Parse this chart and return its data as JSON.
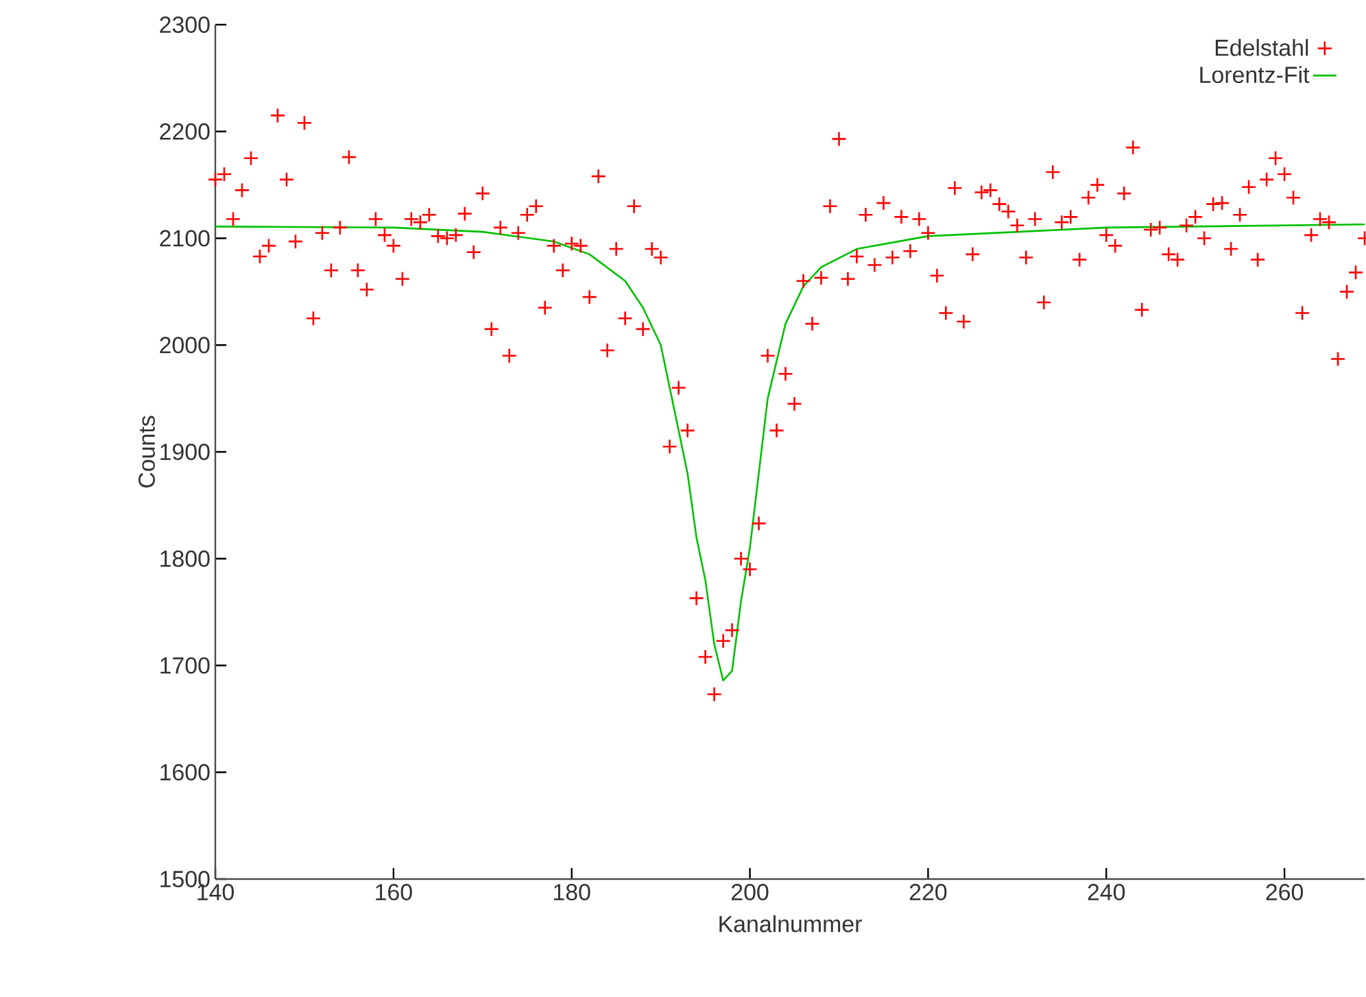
{
  "chart_data": {
    "type": "scatter",
    "xlabel": "Kanalnummer",
    "ylabel": "Counts",
    "xlim": [
      140,
      269
    ],
    "ylim": [
      1500,
      2300
    ],
    "xticks": [
      140,
      160,
      180,
      200,
      220,
      240,
      260
    ],
    "yticks": [
      1500,
      1600,
      1700,
      1800,
      1900,
      2000,
      2100,
      2200,
      2300
    ],
    "legend": "top right",
    "grid": false,
    "series": [
      {
        "name": "Edelstahl",
        "marker": "cross",
        "color": "#ff0000",
        "x": [
          140,
          141,
          142,
          143,
          144,
          145,
          146,
          147,
          148,
          149,
          150,
          151,
          152,
          153,
          154,
          155,
          156,
          157,
          158,
          159,
          160,
          161,
          162,
          163,
          164,
          165,
          166,
          167,
          168,
          169,
          170,
          171,
          172,
          173,
          174,
          175,
          176,
          177,
          178,
          179,
          180,
          181,
          182,
          183,
          184,
          185,
          186,
          187,
          188,
          189,
          190,
          191,
          192,
          193,
          194,
          195,
          196,
          197,
          198,
          199,
          200,
          201,
          202,
          203,
          204,
          205,
          206,
          207,
          208,
          209,
          210,
          211,
          212,
          213,
          214,
          215,
          216,
          217,
          218,
          219,
          220,
          221,
          222,
          223,
          224,
          225,
          226,
          227,
          228,
          229,
          230,
          231,
          232,
          233,
          234,
          235,
          236,
          237,
          238,
          239,
          240,
          241,
          242,
          243,
          244,
          245,
          246,
          247,
          248,
          249,
          250,
          251,
          252,
          253,
          254,
          255,
          256,
          257,
          258,
          259,
          260,
          261,
          262,
          263,
          264,
          265,
          266,
          267,
          268,
          269
        ],
        "values": [
          2155,
          2160,
          2118,
          2145,
          2175,
          2083,
          2093,
          2215,
          2155,
          2097,
          2208,
          2025,
          2105,
          2070,
          2110,
          2176,
          2070,
          2052,
          2118,
          2103,
          2093,
          2062,
          2118,
          2115,
          2122,
          2102,
          2100,
          2103,
          2123,
          2087,
          2142,
          2015,
          2110,
          1990,
          2105,
          2122,
          2130,
          2035,
          2093,
          2070,
          2095,
          2093,
          2045,
          2158,
          1995,
          2090,
          2025,
          2130,
          2015,
          2090,
          2082,
          1905,
          1960,
          1920,
          1763,
          1708,
          1673,
          1723,
          1733,
          1800,
          1790,
          1833,
          1990,
          1920,
          1973,
          1945,
          2060,
          2020,
          2063,
          2130,
          2193,
          2062,
          2083,
          2122,
          2075,
          2133,
          2082,
          2120,
          2088,
          2118,
          2105,
          2065,
          2030,
          2147,
          2022,
          2085,
          2143,
          2145,
          2132,
          2125,
          2112,
          2082,
          2118,
          2040,
          2162,
          2115,
          2120,
          2080,
          2138,
          2150,
          2103,
          2093,
          2142,
          2185,
          2033,
          2108,
          2110,
          2085,
          2080,
          2112,
          2120,
          2100,
          2132,
          2133,
          2090,
          2122,
          2148,
          2080,
          2155,
          2175,
          2160,
          2138,
          2030,
          2103,
          2118,
          2115,
          1987,
          2050,
          2068,
          2100
        ]
      },
      {
        "name": "Lorentz-Fit",
        "type": "line",
        "marker": "none",
        "line_style": "solid",
        "color": "#00c000",
        "x": [
          140,
          160,
          170,
          178,
          182,
          186,
          188,
          190,
          192,
          193,
          194,
          195,
          196,
          197,
          198,
          199,
          200,
          201,
          202,
          204,
          206,
          208,
          212,
          220,
          240,
          269
        ],
        "values": [
          2111,
          2110,
          2106,
          2097,
          2085,
          2060,
          2035,
          2000,
          1920,
          1880,
          1820,
          1780,
          1720,
          1686,
          1695,
          1760,
          1810,
          1880,
          1950,
          2020,
          2055,
          2073,
          2090,
          2102,
          2110,
          2113
        ]
      }
    ]
  }
}
